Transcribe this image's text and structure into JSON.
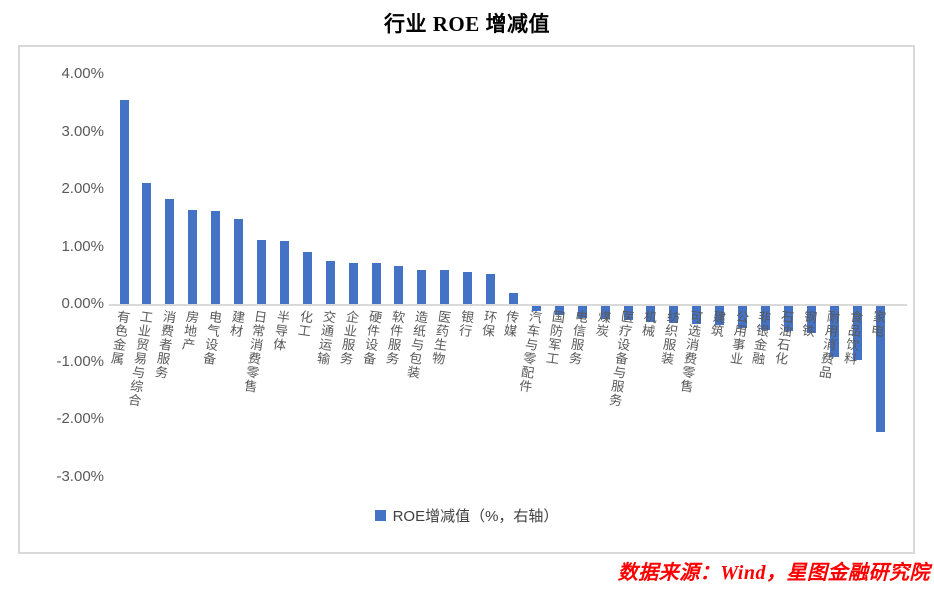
{
  "page": {
    "title": "行业 ROE 增减值",
    "source": "数据来源：Wind，星图金融研究院"
  },
  "chart_data": {
    "type": "bar",
    "title": "行业 ROE 增减值",
    "legend": [
      "ROE增减值（%，右轴）"
    ],
    "legend_position": "bottom",
    "bar_color": "#4472c4",
    "axis_label_color": "#595959",
    "grid": false,
    "ylim": [
      -3,
      4
    ],
    "yticks": [
      4,
      3,
      2,
      1,
      0,
      -1,
      -2,
      -3
    ],
    "ytick_labels": [
      "4.00%",
      "3.00%",
      "2.00%",
      "1.00%",
      "0.00%",
      "-1.00%",
      "-2.00%",
      "-3.00%"
    ],
    "categories": [
      "有色金属",
      "工业贸易与综合",
      "消费者服务",
      "房地产",
      "电气设备",
      "建材",
      "日常消费零售",
      "半导体",
      "化工",
      "交通运输",
      "企业服务",
      "硬件设备",
      "软件服务",
      "造纸与包装",
      "医药生物",
      "银行",
      "环保",
      "传媒",
      "汽车与零配件",
      "国防军工",
      "电信服务",
      "煤炭",
      "医疗设备与服务",
      "机械",
      "纺织服装",
      "可选消费零售",
      "建筑",
      "公用事业",
      "非银金融",
      "石油石化",
      "钢铁",
      "耐用消费品",
      "食品饮料",
      "家电"
    ],
    "values": [
      3.55,
      2.1,
      1.82,
      1.63,
      1.62,
      1.48,
      1.12,
      1.1,
      0.9,
      0.74,
      0.72,
      0.71,
      0.66,
      0.6,
      0.6,
      0.55,
      0.52,
      0.19,
      -0.08,
      -0.15,
      -0.2,
      -0.23,
      -0.25,
      -0.27,
      -0.29,
      -0.31,
      -0.33,
      -0.39,
      -0.41,
      -0.44,
      -0.47,
      -0.88,
      -0.94,
      -2.19
    ]
  }
}
